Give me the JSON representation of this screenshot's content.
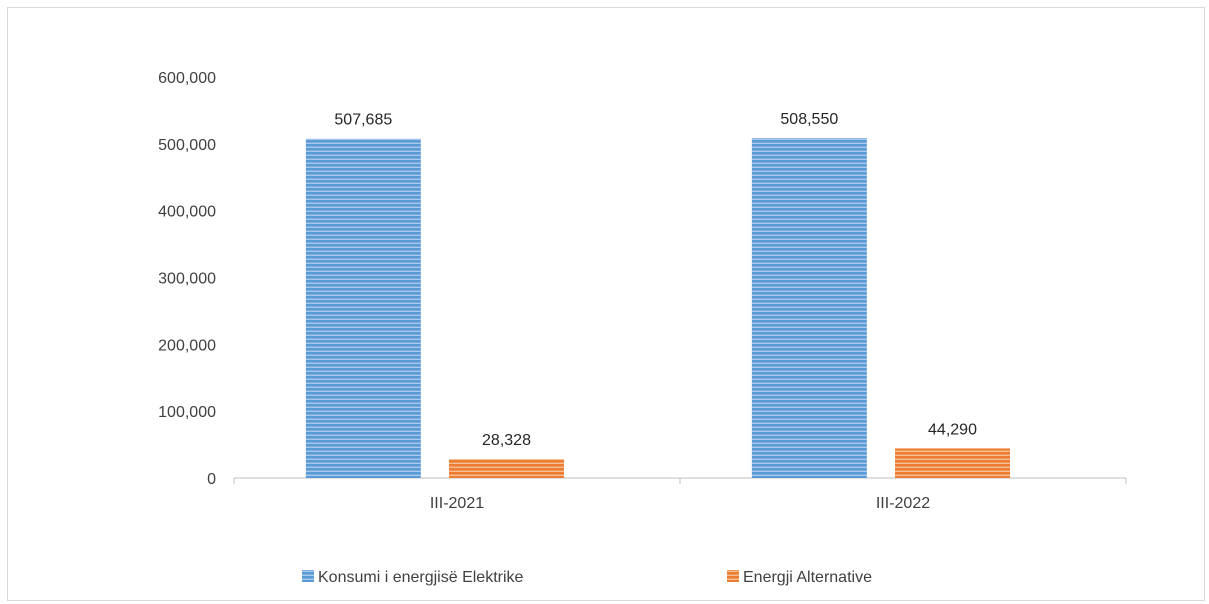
{
  "chart_data": {
    "type": "bar",
    "categories": [
      "III-2021",
      "III-2022"
    ],
    "series": [
      {
        "name": "Konsumi i energjisë Elektrike",
        "values": [
          507685,
          508550
        ],
        "labels": [
          "507,685",
          "508,550"
        ],
        "color": "#5b9bd5"
      },
      {
        "name": "Energji Alternative",
        "values": [
          28328,
          44290
        ],
        "labels": [
          "28,328",
          "44,290"
        ],
        "color": "#ed7d31"
      }
    ],
    "ylim": [
      0,
      600000
    ],
    "yticks": [
      0,
      100000,
      200000,
      300000,
      400000,
      500000,
      600000
    ],
    "ytick_labels": [
      "0",
      "100,000",
      "200,000",
      "300,000",
      "400,000",
      "500,000",
      "600,000"
    ],
    "grid": false,
    "legend": "bottom",
    "fill_pattern": "horizontal-stripes",
    "title": "",
    "xlabel": "",
    "ylabel": ""
  }
}
